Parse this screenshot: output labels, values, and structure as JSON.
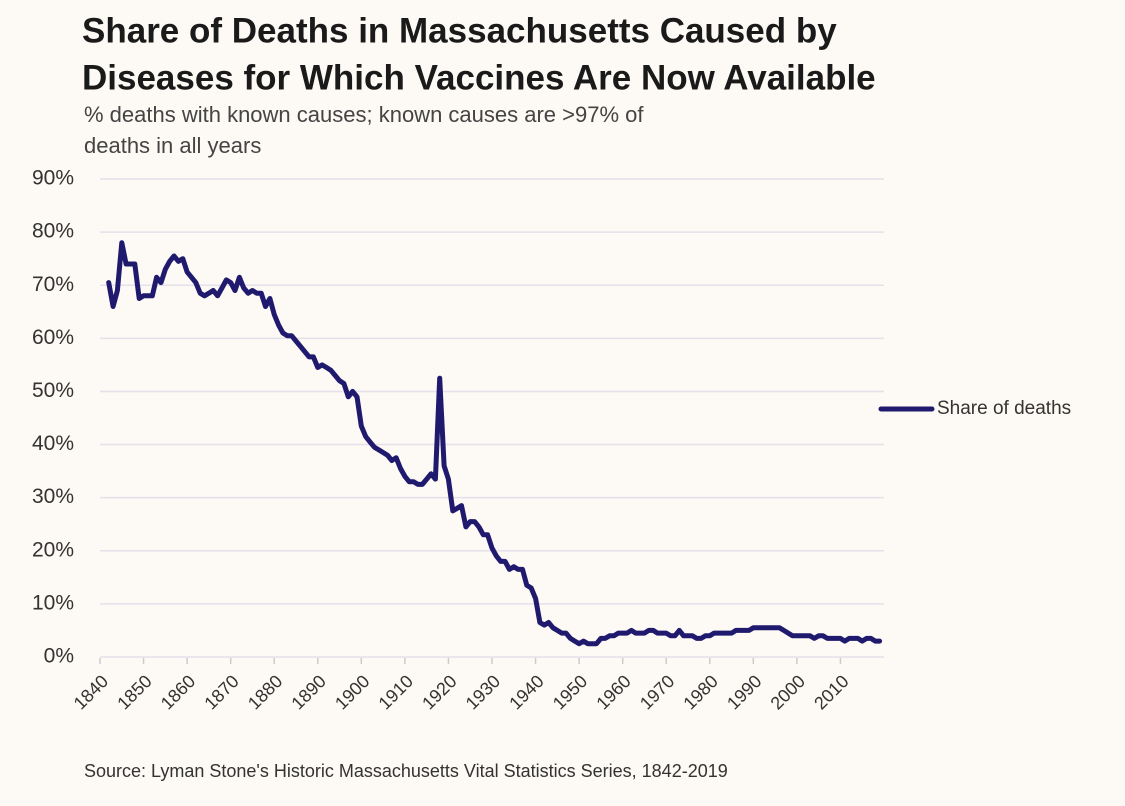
{
  "chart_data": {
    "type": "line",
    "title": [
      "Share of Deaths in Massachusetts Caused by",
      "Diseases for Which Vaccines Are Now Available"
    ],
    "subtitle": [
      "% deaths with known causes; known causes are >97% of",
      "deaths in all years"
    ],
    "source": "Source: Lyman Stone's Historic Massachusetts Vital Statistics Series, 1842-2019",
    "x": [
      1842,
      1843,
      1844,
      1845,
      1846,
      1847,
      1848,
      1849,
      1850,
      1851,
      1852,
      1853,
      1854,
      1855,
      1856,
      1857,
      1858,
      1859,
      1860,
      1861,
      1862,
      1863,
      1864,
      1865,
      1866,
      1867,
      1868,
      1869,
      1870,
      1871,
      1872,
      1873,
      1874,
      1875,
      1876,
      1877,
      1878,
      1879,
      1880,
      1881,
      1882,
      1883,
      1884,
      1885,
      1886,
      1887,
      1888,
      1889,
      1890,
      1891,
      1892,
      1893,
      1894,
      1895,
      1896,
      1897,
      1898,
      1899,
      1900,
      1901,
      1902,
      1903,
      1904,
      1905,
      1906,
      1907,
      1908,
      1909,
      1910,
      1911,
      1912,
      1913,
      1914,
      1915,
      1916,
      1917,
      1918,
      1919,
      1920,
      1921,
      1922,
      1923,
      1924,
      1925,
      1926,
      1927,
      1928,
      1929,
      1930,
      1931,
      1932,
      1933,
      1934,
      1935,
      1936,
      1937,
      1938,
      1939,
      1940,
      1941,
      1942,
      1943,
      1944,
      1945,
      1946,
      1947,
      1948,
      1949,
      1950,
      1951,
      1952,
      1953,
      1954,
      1955,
      1956,
      1957,
      1958,
      1959,
      1960,
      1961,
      1962,
      1963,
      1964,
      1965,
      1966,
      1967,
      1968,
      1969,
      1970,
      1971,
      1972,
      1973,
      1974,
      1975,
      1976,
      1977,
      1978,
      1979,
      1980,
      1981,
      1982,
      1983,
      1984,
      1985,
      1986,
      1987,
      1988,
      1989,
      1990,
      1991,
      1992,
      1993,
      1994,
      1995,
      1996,
      1997,
      1998,
      1999,
      2000,
      2001,
      2002,
      2003,
      2004,
      2005,
      2006,
      2007,
      2008,
      2009,
      2010,
      2011,
      2012,
      2013,
      2014,
      2015,
      2016,
      2017,
      2018,
      2019
    ],
    "series": [
      {
        "name": "Share of deaths",
        "color": "#1f1a6e",
        "values": [
          70.5,
          66,
          69,
          78,
          74,
          74,
          74,
          67.5,
          68,
          68,
          68,
          71.5,
          70.5,
          73,
          74.5,
          75.5,
          74.5,
          75,
          72.5,
          71.5,
          70.5,
          68.5,
          68,
          68.5,
          69,
          68,
          69.5,
          71,
          70.5,
          69,
          71.5,
          69.5,
          68.5,
          69,
          68.5,
          68.5,
          66,
          67.5,
          64.5,
          62.5,
          61,
          60.5,
          60.5,
          59.5,
          58.5,
          57.5,
          56.5,
          56.5,
          54.5,
          55,
          54.5,
          54,
          53,
          52,
          51.5,
          49,
          50,
          49,
          43.5,
          41.5,
          40.5,
          39.5,
          39,
          38.5,
          38,
          37,
          37.5,
          35.5,
          34,
          33,
          33,
          32.5,
          32.5,
          33.5,
          34.5,
          33.5,
          52.5,
          36,
          33.5,
          27.5,
          28,
          28.5,
          24.5,
          25.5,
          25.5,
          24.5,
          23,
          23,
          20.5,
          19,
          18,
          18,
          16.5,
          17,
          16.5,
          16.5,
          13.5,
          13,
          11,
          6.5,
          6,
          6.5,
          5.5,
          5,
          4.5,
          4.5,
          3.5,
          3,
          2.5,
          3,
          2.5,
          2.5,
          2.5,
          3.5,
          3.5,
          4,
          4,
          4.5,
          4.5,
          4.5,
          5,
          4.5,
          4.5,
          4.5,
          5,
          5,
          4.5,
          4.5,
          4.5,
          4,
          4,
          5,
          4,
          4,
          4,
          3.5,
          3.5,
          4,
          4,
          4.5,
          4.5,
          4.5,
          4.5,
          4.5,
          5,
          5,
          5,
          5,
          5.5,
          5.5,
          5.5,
          5.5,
          5.5,
          5.5,
          5.5,
          5,
          4.5,
          4,
          4,
          4,
          4,
          4,
          3.5,
          4,
          4,
          3.5,
          3.5,
          3.5,
          3.5,
          3,
          3.5,
          3.5,
          3.5,
          3,
          3.5,
          3.5,
          3,
          3
        ]
      }
    ],
    "xlim": [
      1840,
      2020
    ],
    "xticks": [
      1840,
      1850,
      1860,
      1870,
      1880,
      1890,
      1900,
      1910,
      1920,
      1930,
      1940,
      1950,
      1960,
      1970,
      1980,
      1990,
      2000,
      2010
    ],
    "ylim": [
      0,
      90
    ],
    "yticks": [
      {
        "value": 0,
        "label": "0%"
      },
      {
        "value": 10,
        "label": "10%"
      },
      {
        "value": 20,
        "label": "20%"
      },
      {
        "value": 30,
        "label": "30%"
      },
      {
        "value": 40,
        "label": "40%"
      },
      {
        "value": 50,
        "label": "50%"
      },
      {
        "value": 60,
        "label": "60%"
      },
      {
        "value": 70,
        "label": "70%"
      },
      {
        "value": 80,
        "label": "80%"
      },
      {
        "value": 90,
        "label": "90%"
      }
    ],
    "grid": true,
    "legend": "right"
  }
}
